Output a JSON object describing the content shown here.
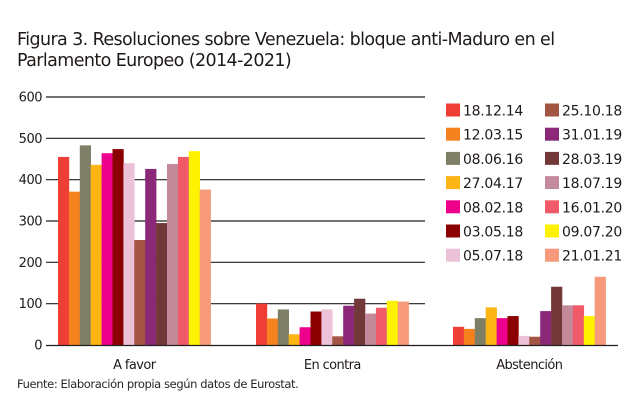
{
  "chart_data": {
    "type": "bar",
    "title_lines": [
      "Figura 3. Resoluciones sobre Venezuela: bloque anti-Maduro en el",
      "Parlamento Europeo (2014-2021)"
    ],
    "categories": [
      "A favor",
      "En contra",
      "Abstención"
    ],
    "xlabel": "",
    "ylabel": "",
    "ylim": [
      0,
      600
    ],
    "yticks": [
      0,
      100,
      200,
      300,
      400,
      500,
      600
    ],
    "grid": true,
    "legend_position": "right",
    "series": [
      {
        "name": "18.12.14",
        "color": "#ef3e36",
        "values": [
          455,
          100,
          44
        ]
      },
      {
        "name": "12.03.15",
        "color": "#f5821f",
        "values": [
          371,
          64,
          39
        ]
      },
      {
        "name": "08.06.16",
        "color": "#7f7f67",
        "values": [
          483,
          86,
          65
        ]
      },
      {
        "name": "27.04.17",
        "color": "#fdb515",
        "values": [
          436,
          26,
          91
        ]
      },
      {
        "name": "08.02.18",
        "color": "#ec008c",
        "values": [
          464,
          43,
          65
        ]
      },
      {
        "name": "03.05.18",
        "color": "#8b0000",
        "values": [
          474,
          81,
          70
        ]
      },
      {
        "name": "05.07.18",
        "color": "#ecc2d8",
        "values": [
          440,
          86,
          22
        ]
      },
      {
        "name": "25.10.18",
        "color": "#a45443",
        "values": [
          254,
          21,
          20
        ]
      },
      {
        "name": "31.01.19",
        "color": "#8b2878",
        "values": [
          426,
          95,
          82
        ]
      },
      {
        "name": "28.03.19",
        "color": "#723838",
        "values": [
          295,
          112,
          141
        ]
      },
      {
        "name": "18.07.19",
        "color": "#c28a9a",
        "values": [
          438,
          76,
          96
        ]
      },
      {
        "name": "16.01.20",
        "color": "#f15a68",
        "values": [
          455,
          90,
          96
        ]
      },
      {
        "name": "09.07.20",
        "color": "#fff200",
        "values": [
          469,
          107,
          70
        ]
      },
      {
        "name": "21.01.21",
        "color": "#f69a7b",
        "values": [
          376,
          105,
          165
        ]
      }
    ],
    "source": "Fuente: Elaboración propia según datos de Eurostat."
  }
}
